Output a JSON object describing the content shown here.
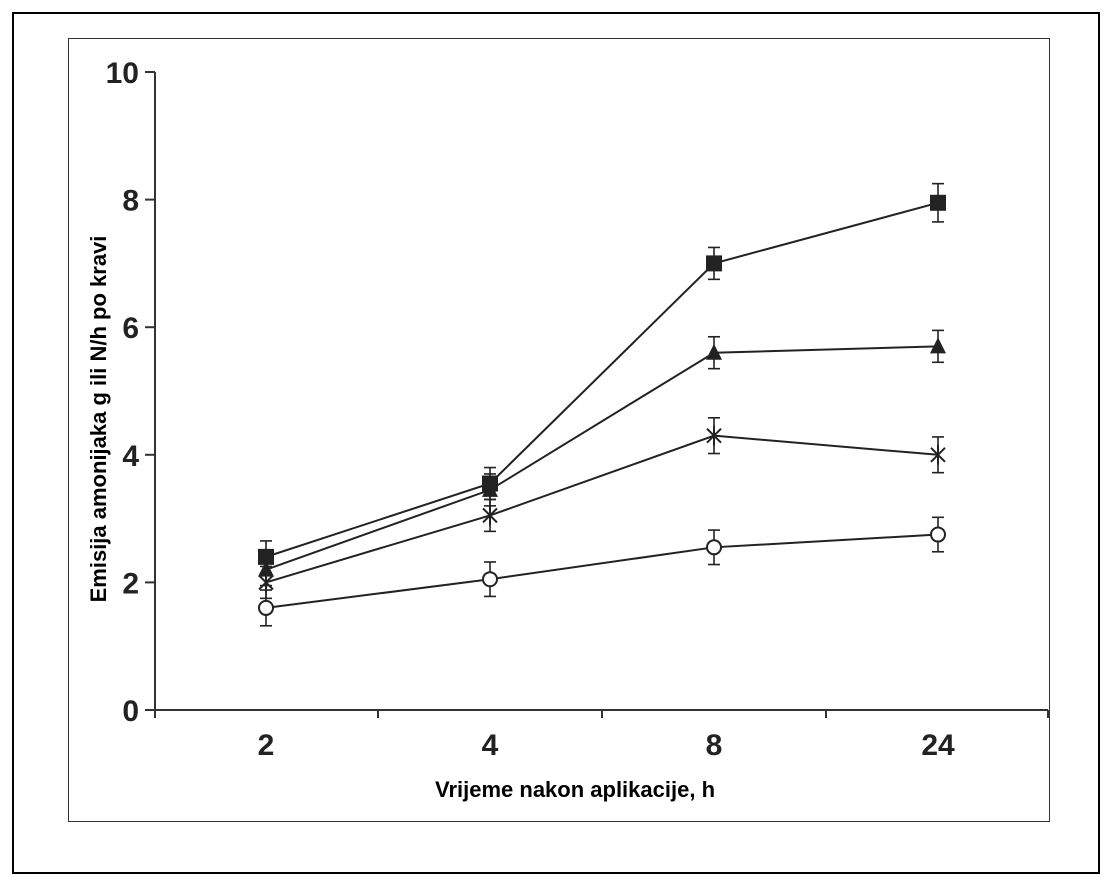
{
  "chart_data": {
    "type": "line",
    "xlabel": "Vrijeme nakon aplikacije, h",
    "ylabel": "Emisija amonijaka g ili N/h po kravi",
    "categories": [
      "2",
      "4",
      "8",
      "24"
    ],
    "y_ticks": [
      "0",
      "2",
      "4",
      "6",
      "8",
      "10"
    ],
    "ylim": [
      0,
      10
    ],
    "grid": false,
    "legend": "none",
    "series": [
      {
        "marker": "filled-square",
        "color": "#222222",
        "values": [
          2.4,
          3.55,
          7.0,
          7.95
        ],
        "errors": [
          0.25,
          0.25,
          0.25,
          0.3
        ]
      },
      {
        "marker": "filled-triangle",
        "color": "#222222",
        "values": [
          2.2,
          3.45,
          5.6,
          5.7
        ],
        "errors": [
          0.25,
          0.25,
          0.25,
          0.25
        ]
      },
      {
        "marker": "star",
        "color": "#222222",
        "values": [
          2.0,
          3.05,
          4.3,
          4.0
        ],
        "errors": [
          0.25,
          0.25,
          0.28,
          0.28
        ]
      },
      {
        "marker": "open-circle",
        "color": "#222222",
        "values": [
          1.6,
          2.05,
          2.55,
          2.75
        ],
        "errors": [
          0.28,
          0.27,
          0.27,
          0.27
        ]
      }
    ]
  }
}
